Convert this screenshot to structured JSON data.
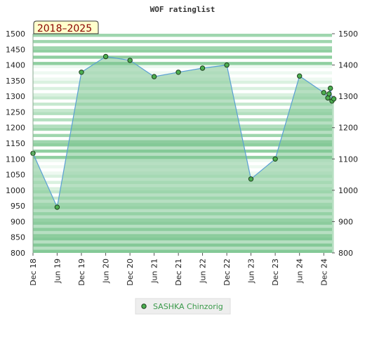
{
  "chart_data": {
    "type": "line",
    "title": "WOF ratinglist",
    "period_label": "2018–2025",
    "ylim": [
      800,
      1500
    ],
    "yticks": [
      800,
      850,
      900,
      950,
      1000,
      1050,
      1100,
      1150,
      1200,
      1250,
      1300,
      1350,
      1400,
      1450,
      1500
    ],
    "yticks_right": [
      800,
      900,
      1000,
      1100,
      1200,
      1300,
      1400,
      1500
    ],
    "xlim": [
      "2018-12-01",
      "2025-02-01"
    ],
    "xticks": [
      {
        "date": "2018-12-01",
        "label": "Dec 18"
      },
      {
        "date": "2019-06-01",
        "label": "Jun 19"
      },
      {
        "date": "2019-12-01",
        "label": "Dec 19"
      },
      {
        "date": "2020-06-01",
        "label": "Jun 20"
      },
      {
        "date": "2020-12-01",
        "label": "Dec 20"
      },
      {
        "date": "2021-06-01",
        "label": "Jun 21"
      },
      {
        "date": "2021-12-01",
        "label": "Dec 21"
      },
      {
        "date": "2022-06-01",
        "label": "Jun 22"
      },
      {
        "date": "2022-12-01",
        "label": "Dec 22"
      },
      {
        "date": "2023-06-01",
        "label": "Jun 23"
      },
      {
        "date": "2023-12-01",
        "label": "Dec 23"
      },
      {
        "date": "2024-06-01",
        "label": "Jun 24"
      },
      {
        "date": "2024-12-01",
        "label": "Dec 24"
      }
    ],
    "series": [
      {
        "name": "SASHKA Chinzorig",
        "x": [
          "2018-12-01",
          "2019-06-01",
          "2019-12-01",
          "2020-06-01",
          "2020-12-01",
          "2021-06-01",
          "2021-12-01",
          "2022-06-01",
          "2022-12-01",
          "2023-06-01",
          "2023-12-01",
          "2024-06-01",
          "2024-12-01",
          "2025-01-01",
          "2025-01-10",
          "2025-01-20",
          "2025-02-01",
          "2025-02-15"
        ],
        "y": [
          1118,
          946,
          1377,
          1427,
          1415,
          1363,
          1377,
          1390,
          1400,
          1036,
          1100,
          1365,
          1312,
          1295,
          1308,
          1326,
          1285,
          1292
        ]
      }
    ],
    "grid": true,
    "legend_position": "bottom-center"
  },
  "colors": {
    "line": "#5a9fd4",
    "area": "#7cc48f",
    "marker": "#4caf50",
    "band_dark": "#8fcfa0",
    "band_light": "#cfeed6",
    "period_bg": "#ffffcc",
    "legend_bg": "#eeeeee"
  }
}
